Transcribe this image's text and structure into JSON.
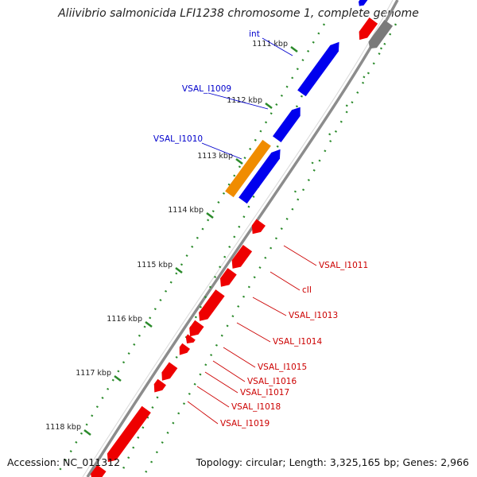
{
  "title": "Aliivibrio salmonicida LFI1238 chromosome 1, complete genome",
  "footer": {
    "accession": "Accession: NC_011312",
    "topology": "Topology: circular; Length: 3,325,165 bp; Genes: 2,966"
  },
  "colors": {
    "backbone": "#8c8c8c",
    "forward_gene": "#0000ee",
    "reverse_gene": "#ee0000",
    "rna_gene": "#f08c00",
    "other_gene": "#7a7a7a",
    "tick": "#2a8a2a",
    "forward_label": "#0000cc",
    "reverse_label": "#cc0000",
    "text": "#222222"
  },
  "scale_ticks": [
    "1111 kbp",
    "1112 kbp",
    "1113 kbp",
    "1114 kbp",
    "1115 kbp",
    "1116 kbp",
    "1117 kbp",
    "1118 kbp"
  ],
  "forward_gene_labels": [
    "int",
    "VSAL_I1009",
    "VSAL_I1010"
  ],
  "reverse_gene_labels": [
    "VSAL_I1011",
    "cII",
    "VSAL_I1013",
    "VSAL_I1014",
    "VSAL_I1015",
    "VSAL_I1016",
    "VSAL_I1017",
    "VSAL_I1018",
    "VSAL_I1019"
  ]
}
